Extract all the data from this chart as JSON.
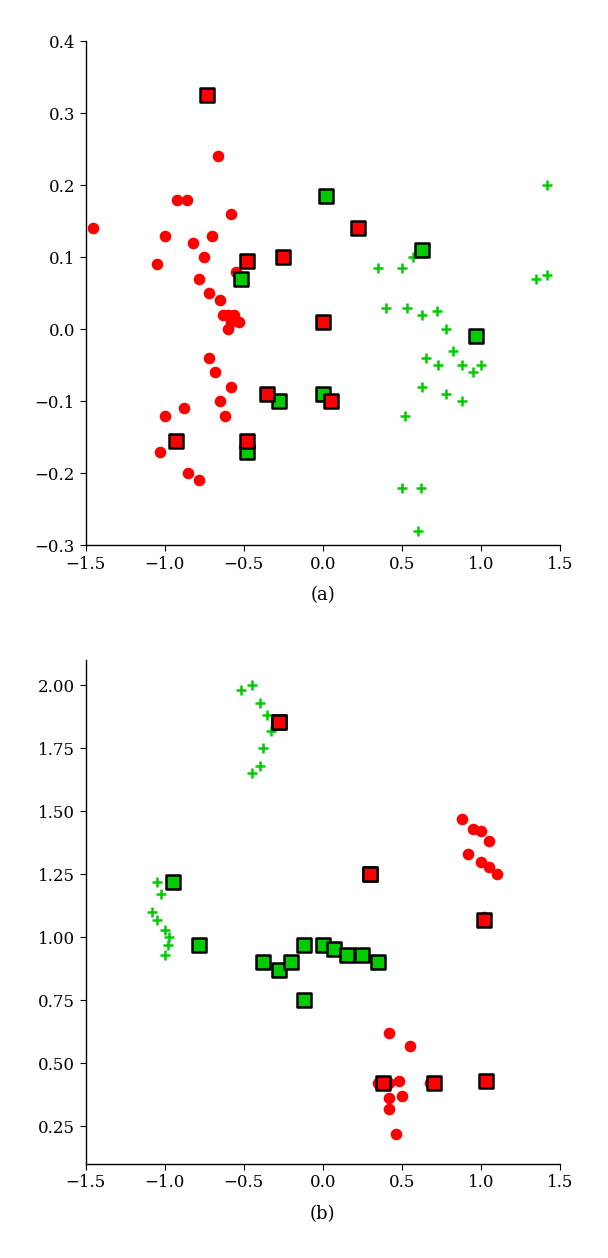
{
  "plot_a": {
    "red_dots": [
      [
        -1.45,
        0.14
      ],
      [
        -1.05,
        0.09
      ],
      [
        -1.0,
        0.13
      ],
      [
        -0.92,
        0.18
      ],
      [
        -0.86,
        0.18
      ],
      [
        -0.82,
        0.12
      ],
      [
        -0.78,
        0.07
      ],
      [
        -0.75,
        0.1
      ],
      [
        -0.72,
        0.05
      ],
      [
        -0.7,
        0.13
      ],
      [
        -0.65,
        0.04
      ],
      [
        -0.63,
        0.02
      ],
      [
        -0.6,
        0.02
      ],
      [
        -0.58,
        0.01
      ],
      [
        -0.56,
        0.02
      ],
      [
        -0.53,
        0.01
      ],
      [
        -0.6,
        0.0
      ],
      [
        -0.72,
        -0.04
      ],
      [
        -0.68,
        -0.06
      ],
      [
        -0.65,
        -0.1
      ],
      [
        -0.62,
        -0.12
      ],
      [
        -0.58,
        -0.08
      ],
      [
        -0.88,
        -0.11
      ],
      [
        -0.85,
        -0.2
      ],
      [
        -0.78,
        -0.21
      ],
      [
        -0.66,
        0.24
      ],
      [
        -0.58,
        0.16
      ],
      [
        -1.0,
        -0.12
      ],
      [
        -1.03,
        -0.17
      ],
      [
        -0.55,
        0.08
      ]
    ],
    "red_squares": [
      [
        -0.73,
        0.325
      ],
      [
        -0.48,
        0.095
      ],
      [
        -0.25,
        0.1
      ],
      [
        0.0,
        0.01
      ],
      [
        -0.35,
        -0.09
      ],
      [
        -0.48,
        -0.155
      ],
      [
        0.05,
        -0.1
      ],
      [
        0.22,
        0.14
      ],
      [
        -0.93,
        -0.155
      ]
    ],
    "green_squares": [
      [
        0.02,
        0.185
      ],
      [
        0.63,
        0.11
      ],
      [
        0.97,
        -0.01
      ],
      [
        -0.28,
        -0.1
      ],
      [
        -0.48,
        -0.17
      ],
      [
        -0.52,
        0.07
      ],
      [
        0.0,
        -0.09
      ]
    ],
    "green_plus": [
      [
        0.35,
        0.085
      ],
      [
        0.5,
        0.085
      ],
      [
        0.57,
        0.1
      ],
      [
        0.4,
        0.03
      ],
      [
        0.53,
        0.03
      ],
      [
        0.63,
        0.02
      ],
      [
        0.72,
        0.025
      ],
      [
        0.78,
        0.0
      ],
      [
        0.65,
        -0.04
      ],
      [
        0.73,
        -0.05
      ],
      [
        0.82,
        -0.03
      ],
      [
        0.88,
        -0.05
      ],
      [
        0.95,
        -0.06
      ],
      [
        1.0,
        -0.05
      ],
      [
        0.63,
        -0.08
      ],
      [
        0.78,
        -0.09
      ],
      [
        0.88,
        -0.1
      ],
      [
        0.52,
        -0.12
      ],
      [
        0.62,
        -0.22
      ],
      [
        0.5,
        -0.22
      ],
      [
        0.6,
        -0.28
      ],
      [
        1.35,
        0.07
      ],
      [
        1.42,
        0.2
      ],
      [
        1.42,
        0.075
      ]
    ],
    "xlim": [
      -1.5,
      1.5
    ],
    "ylim": [
      -0.3,
      0.4
    ],
    "yticks": [
      -0.3,
      -0.2,
      -0.1,
      0.0,
      0.1,
      0.2,
      0.3,
      0.4
    ],
    "label": "(a)"
  },
  "plot_b": {
    "red_dots": [
      [
        0.88,
        1.47
      ],
      [
        0.95,
        1.43
      ],
      [
        1.0,
        1.42
      ],
      [
        1.05,
        1.38
      ],
      [
        0.92,
        1.33
      ],
      [
        1.0,
        1.3
      ],
      [
        1.05,
        1.28
      ],
      [
        1.1,
        1.25
      ],
      [
        1.02,
        1.08
      ],
      [
        0.42,
        0.62
      ],
      [
        0.55,
        0.57
      ],
      [
        0.35,
        0.42
      ],
      [
        0.42,
        0.42
      ],
      [
        0.48,
        0.43
      ],
      [
        0.42,
        0.36
      ],
      [
        0.5,
        0.37
      ],
      [
        0.42,
        0.32
      ],
      [
        0.46,
        0.22
      ],
      [
        0.68,
        0.42
      ],
      [
        1.02,
        0.42
      ]
    ],
    "red_squares": [
      [
        1.02,
        1.07
      ],
      [
        -0.28,
        1.855
      ],
      [
        0.3,
        1.25
      ],
      [
        0.38,
        0.42
      ],
      [
        0.7,
        0.42
      ],
      [
        1.03,
        0.43
      ]
    ],
    "green_squares": [
      [
        -0.28,
        1.855
      ],
      [
        -0.95,
        1.22
      ],
      [
        -0.78,
        0.97
      ],
      [
        -0.38,
        0.9
      ],
      [
        -0.28,
        0.87
      ],
      [
        -0.2,
        0.9
      ],
      [
        -0.12,
        0.97
      ],
      [
        0.0,
        0.97
      ],
      [
        0.07,
        0.955
      ],
      [
        0.15,
        0.93
      ],
      [
        0.25,
        0.93
      ],
      [
        0.35,
        0.9
      ],
      [
        -0.12,
        0.75
      ],
      [
        0.3,
        1.25
      ]
    ],
    "green_plus": [
      [
        -0.52,
        1.98
      ],
      [
        -0.45,
        2.0
      ],
      [
        -0.4,
        1.93
      ],
      [
        -0.35,
        1.88
      ],
      [
        -0.33,
        1.82
      ],
      [
        -0.38,
        1.75
      ],
      [
        -0.4,
        1.68
      ],
      [
        -0.45,
        1.65
      ],
      [
        -1.05,
        1.22
      ],
      [
        -1.02,
        1.17
      ],
      [
        -1.08,
        1.1
      ],
      [
        -1.05,
        1.07
      ],
      [
        -1.0,
        1.03
      ],
      [
        -0.97,
        1.0
      ],
      [
        -0.98,
        0.97
      ],
      [
        -1.0,
        0.93
      ]
    ],
    "xlim": [
      -1.5,
      1.5
    ],
    "ylim": [
      0.1,
      2.1
    ],
    "yticks": [
      0.5,
      1.0,
      1.5,
      2.0
    ],
    "label": "(b)"
  },
  "marker_size_dot": 70,
  "marker_size_square": 90,
  "marker_size_plus": 55,
  "red_color": "#ff0000",
  "green_color": "#00cc00",
  "black_color": "#000000",
  "fig_width": 6.08,
  "fig_height": 12.58,
  "dpi": 100
}
